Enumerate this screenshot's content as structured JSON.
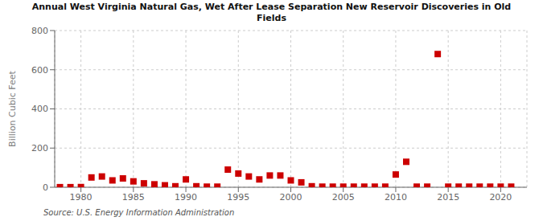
{
  "chart_data": {
    "type": "scatter",
    "title": "Annual West Virginia Natural Gas, Wet After Lease Separation New Reservoir Discoveries in Old\nFields",
    "ylabel": "Billion Cubic Feet",
    "annotations": [
      "Source: U.S. Energy Information Administration"
    ],
    "color": "#cc0000",
    "marker": "square",
    "grid": true,
    "xlim": [
      1977.5,
      2022.5
    ],
    "ylim": [
      0,
      800
    ],
    "xticks": [
      1980,
      1985,
      1990,
      1995,
      2000,
      2005,
      2010,
      2015,
      2020
    ],
    "yticks": [
      0,
      200,
      400,
      600,
      800
    ],
    "x": [
      1978,
      1979,
      1980,
      1981,
      1982,
      1983,
      1984,
      1985,
      1986,
      1987,
      1988,
      1989,
      1990,
      1991,
      1992,
      1993,
      1994,
      1995,
      1996,
      1997,
      1998,
      1999,
      2000,
      2001,
      2002,
      2003,
      2004,
      2005,
      2006,
      2007,
      2008,
      2009,
      2010,
      2011,
      2012,
      2013,
      2014,
      2015,
      2016,
      2017,
      2018,
      2019,
      2020,
      2021
    ],
    "values": [
      0.5,
      0.5,
      1,
      50,
      55,
      35,
      45,
      30,
      20,
      15,
      10,
      5,
      40,
      5,
      3,
      3,
      90,
      70,
      55,
      40,
      60,
      60,
      35,
      25,
      5,
      3,
      3,
      3,
      3,
      3,
      3,
      3,
      65,
      130,
      3,
      3,
      680,
      3,
      3,
      3,
      3,
      3,
      3,
      3
    ]
  }
}
